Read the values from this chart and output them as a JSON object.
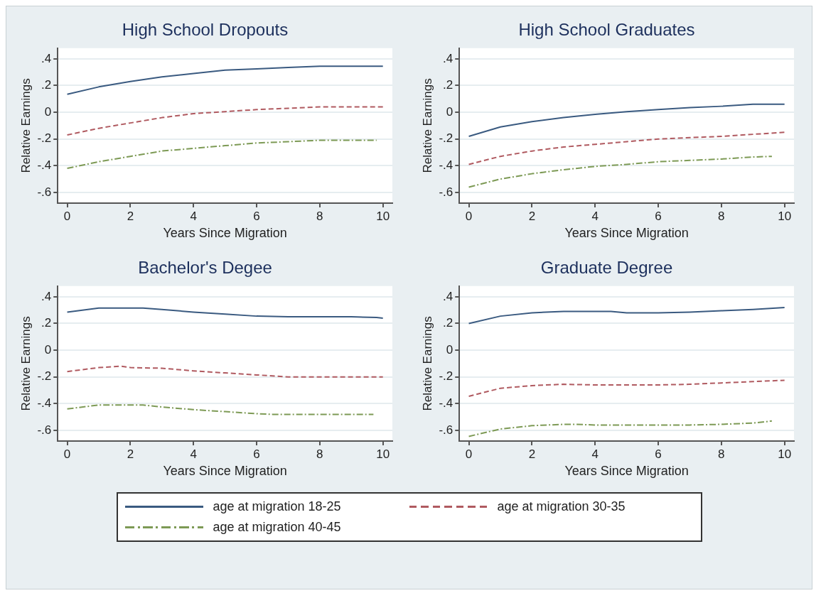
{
  "chart_data": [
    {
      "type": "line",
      "title": "High School Dropouts",
      "xlabel": "Years Since Migration",
      "ylabel": "Relative Earnings",
      "xlim": [
        -0.3,
        10.3
      ],
      "xticks": [
        0,
        2,
        4,
        6,
        8,
        10
      ],
      "ylim": [
        -0.68,
        0.48
      ],
      "yticks": [
        {
          "value": -0.6,
          "label": "-.6"
        },
        {
          "value": -0.4,
          "label": "-.4"
        },
        {
          "value": -0.2,
          "label": "-.2"
        },
        {
          "value": 0,
          "label": "0"
        },
        {
          "value": 0.2,
          "label": ".2"
        },
        {
          "value": 0.4,
          "label": ".4"
        }
      ],
      "grid": "y",
      "legend": "bottom",
      "marker": "none",
      "series": [
        {
          "name": "age at migration 18-25",
          "color": "#3a5a80",
          "line_style": "solid",
          "x": [
            0,
            1,
            2,
            3,
            4,
            5,
            6,
            7,
            8,
            9,
            10
          ],
          "values": [
            0.135,
            0.19,
            0.23,
            0.265,
            0.29,
            0.315,
            0.325,
            0.335,
            0.345,
            0.345,
            0.345
          ]
        },
        {
          "name": "age at migration 30-35",
          "color": "#b05a60",
          "line_style": "dashed",
          "x": [
            0,
            1,
            2,
            3,
            4,
            5,
            6,
            7,
            8,
            9,
            10
          ],
          "values": [
            -0.17,
            -0.12,
            -0.08,
            -0.04,
            -0.01,
            0.005,
            0.02,
            0.03,
            0.04,
            0.04,
            0.04
          ]
        },
        {
          "name": "age at migration 40-45",
          "color": "#7d9a55",
          "line_style": "dashed",
          "x": [
            0,
            1,
            2,
            3,
            4,
            5,
            6,
            7,
            8,
            9,
            9.8
          ],
          "values": [
            -0.42,
            -0.37,
            -0.33,
            -0.29,
            -0.27,
            -0.25,
            -0.23,
            -0.22,
            -0.21,
            -0.21,
            -0.21
          ]
        }
      ]
    },
    {
      "type": "line",
      "title": "High School Graduates",
      "xlabel": "Years Since Migration",
      "ylabel": "Relative Earnings",
      "xlim": [
        -0.3,
        10.3
      ],
      "xticks": [
        0,
        2,
        4,
        6,
        8,
        10
      ],
      "ylim": [
        -0.68,
        0.48
      ],
      "yticks": [
        {
          "value": -0.6,
          "label": "-.6"
        },
        {
          "value": -0.4,
          "label": "-.4"
        },
        {
          "value": -0.2,
          "label": "-.2"
        },
        {
          "value": 0,
          "label": "0"
        },
        {
          "value": 0.2,
          "label": ".2"
        },
        {
          "value": 0.4,
          "label": ".4"
        }
      ],
      "grid": "y",
      "marker": "none",
      "series": [
        {
          "color": "#3a5a80",
          "line_style": "solid",
          "x": [
            0,
            1,
            2,
            3,
            4,
            5,
            6,
            7,
            8,
            9,
            10
          ],
          "values": [
            -0.18,
            -0.11,
            -0.07,
            -0.04,
            -0.015,
            0.005,
            0.02,
            0.035,
            0.045,
            0.06,
            0.06
          ]
        },
        {
          "color": "#b05a60",
          "line_style": "dashed",
          "x": [
            0,
            1,
            2,
            3,
            4,
            5,
            6,
            7,
            8,
            9,
            10
          ],
          "values": [
            -0.39,
            -0.33,
            -0.29,
            -0.26,
            -0.24,
            -0.22,
            -0.2,
            -0.19,
            -0.18,
            -0.165,
            -0.15
          ]
        },
        {
          "color": "#7d9a55",
          "line_style": "dashed",
          "x": [
            0,
            1,
            2,
            3,
            4,
            5,
            6,
            7,
            8,
            9,
            9.6
          ],
          "values": [
            -0.56,
            -0.5,
            -0.46,
            -0.43,
            -0.405,
            -0.39,
            -0.37,
            -0.36,
            -0.35,
            -0.335,
            -0.33
          ]
        }
      ]
    },
    {
      "type": "line",
      "title": "Bachelor's Degee",
      "xlabel": "Years Since Migration",
      "ylabel": "Relative Earnings",
      "xlim": [
        -0.3,
        10.3
      ],
      "xticks": [
        0,
        2,
        4,
        6,
        8,
        10
      ],
      "ylim": [
        -0.68,
        0.48
      ],
      "yticks": [
        {
          "value": -0.6,
          "label": "-.6"
        },
        {
          "value": -0.4,
          "label": "-.4"
        },
        {
          "value": -0.2,
          "label": "-.2"
        },
        {
          "value": 0,
          "label": "0"
        },
        {
          "value": 0.2,
          "label": ".2"
        },
        {
          "value": 0.4,
          "label": ".4"
        }
      ],
      "grid": "y",
      "marker": "none",
      "series": [
        {
          "color": "#3a5a80",
          "line_style": "solid",
          "x": [
            0,
            1,
            2,
            2.4,
            3,
            4,
            5,
            6,
            7,
            8,
            9,
            9.8,
            10
          ],
          "values": [
            0.285,
            0.315,
            0.315,
            0.315,
            0.305,
            0.285,
            0.27,
            0.255,
            0.25,
            0.25,
            0.25,
            0.245,
            0.24
          ]
        },
        {
          "color": "#b05a60",
          "line_style": "dashed",
          "x": [
            0,
            1,
            1.7,
            2,
            3,
            4,
            5,
            6,
            7,
            8,
            9,
            10
          ],
          "values": [
            -0.16,
            -0.13,
            -0.12,
            -0.13,
            -0.135,
            -0.155,
            -0.17,
            -0.185,
            -0.2,
            -0.2,
            -0.2,
            -0.2
          ]
        },
        {
          "color": "#7d9a55",
          "line_style": "dashed",
          "x": [
            0,
            1,
            2,
            2.4,
            3,
            4,
            5,
            6,
            6.5,
            7,
            8,
            9,
            9.7
          ],
          "values": [
            -0.44,
            -0.41,
            -0.41,
            -0.41,
            -0.425,
            -0.445,
            -0.46,
            -0.475,
            -0.48,
            -0.48,
            -0.48,
            -0.48,
            -0.48
          ]
        }
      ]
    },
    {
      "type": "line",
      "title": "Graduate Degree",
      "xlabel": "Years Since Migration",
      "ylabel": "Relative Earnings",
      "xlim": [
        -0.3,
        10.3
      ],
      "xticks": [
        0,
        2,
        4,
        6,
        8,
        10
      ],
      "ylim": [
        -0.68,
        0.48
      ],
      "yticks": [
        {
          "value": -0.6,
          "label": "-.6"
        },
        {
          "value": -0.4,
          "label": "-.4"
        },
        {
          "value": -0.2,
          "label": "-.2"
        },
        {
          "value": 0,
          "label": "0"
        },
        {
          "value": 0.2,
          "label": ".2"
        },
        {
          "value": 0.4,
          "label": ".4"
        }
      ],
      "grid": "y",
      "marker": "none",
      "series": [
        {
          "color": "#3a5a80",
          "line_style": "solid",
          "x": [
            0,
            1,
            2,
            3,
            4,
            4.5,
            5,
            6,
            7,
            8,
            9,
            10
          ],
          "values": [
            0.2,
            0.255,
            0.28,
            0.29,
            0.29,
            0.29,
            0.28,
            0.28,
            0.285,
            0.295,
            0.305,
            0.32
          ]
        },
        {
          "color": "#b05a60",
          "line_style": "dashed",
          "x": [
            0,
            1,
            2,
            3,
            4,
            5,
            6,
            7,
            8,
            9,
            10
          ],
          "values": [
            -0.345,
            -0.285,
            -0.265,
            -0.255,
            -0.26,
            -0.26,
            -0.26,
            -0.255,
            -0.245,
            -0.235,
            -0.225
          ]
        },
        {
          "color": "#7d9a55",
          "line_style": "dashed",
          "x": [
            0,
            1,
            2,
            3,
            3.4,
            4,
            5,
            6,
            7,
            8,
            9,
            9.6
          ],
          "values": [
            -0.645,
            -0.59,
            -0.565,
            -0.555,
            -0.555,
            -0.56,
            -0.56,
            -0.56,
            -0.56,
            -0.555,
            -0.545,
            -0.53
          ]
        }
      ]
    }
  ]
}
